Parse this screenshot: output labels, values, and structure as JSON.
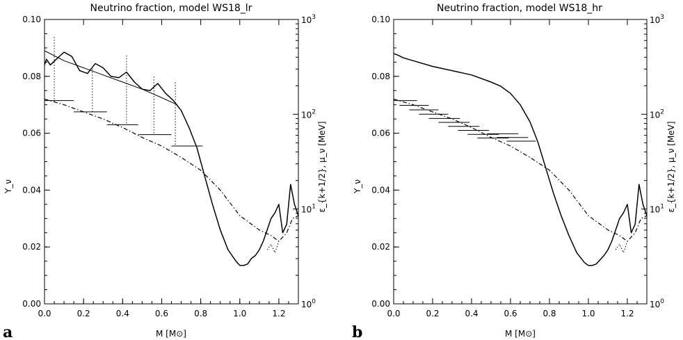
{
  "chart_data": [
    {
      "panel_label": "a",
      "type": "line",
      "title": "Neutrino fraction, model WS18_lr",
      "xlabel": "M [M⊙]",
      "ylabel": "Y_ν",
      "ylabel_right": "ε_{k+1/2}, μ_ν [MeV]",
      "xlim": [
        0.0,
        1.3
      ],
      "ylim": [
        0.0,
        0.1
      ],
      "ylim_right": [
        1,
        1000
      ],
      "right_scale": "log",
      "xticks": [
        "0.0",
        "0.2",
        "0.4",
        "0.6",
        "0.8",
        "1.0",
        "1.2"
      ],
      "yticks": [
        "0.00",
        "0.02",
        "0.04",
        "0.06",
        "0.08",
        "0.10"
      ],
      "right_ticks": [
        {
          "base": "10",
          "exp": "0",
          "value": 1
        },
        {
          "base": "10",
          "exp": "1",
          "value": 10
        },
        {
          "base": "10",
          "exp": "2",
          "value": 100
        },
        {
          "base": "10",
          "exp": "3",
          "value": 1000
        }
      ],
      "series": [
        {
          "style": "solid",
          "axis": "left",
          "x": [
            0.0,
            0.01,
            0.03,
            0.06,
            0.1,
            0.14,
            0.18,
            0.22,
            0.26,
            0.3,
            0.34,
            0.38,
            0.42,
            0.46,
            0.5,
            0.54,
            0.58,
            0.62,
            0.66,
            0.7,
            0.74,
            0.78,
            0.82,
            0.86,
            0.9,
            0.94,
            0.98,
            1.0,
            1.02,
            1.04,
            1.06,
            1.08,
            1.1,
            1.12,
            1.14,
            1.16,
            1.18,
            1.2,
            1.22,
            1.24,
            1.26,
            1.28,
            1.3
          ],
          "y": [
            0.084,
            0.086,
            0.084,
            0.086,
            0.0885,
            0.087,
            0.082,
            0.081,
            0.0845,
            0.083,
            0.08,
            0.0795,
            0.0815,
            0.078,
            0.0755,
            0.075,
            0.0775,
            0.074,
            0.0715,
            0.068,
            0.062,
            0.055,
            0.045,
            0.035,
            0.026,
            0.019,
            0.015,
            0.0135,
            0.0135,
            0.014,
            0.016,
            0.017,
            0.019,
            0.022,
            0.026,
            0.03,
            0.032,
            0.035,
            0.025,
            0.028,
            0.042,
            0.035,
            0.031
          ]
        },
        {
          "style": "solid-thin",
          "axis": "left",
          "x": [
            0.0,
            0.1,
            0.2,
            0.3,
            0.4,
            0.5,
            0.6,
            0.68
          ],
          "y": [
            0.089,
            0.0855,
            0.083,
            0.0805,
            0.078,
            0.0755,
            0.0725,
            0.07
          ]
        },
        {
          "style": "dash-dot",
          "axis": "left",
          "x": [
            0.0,
            0.1,
            0.2,
            0.3,
            0.4,
            0.5,
            0.6,
            0.7,
            0.8,
            0.9,
            1.0,
            1.1,
            1.16,
            1.2,
            1.24,
            1.27,
            1.3
          ],
          "y": [
            0.072,
            0.07,
            0.0675,
            0.065,
            0.062,
            0.0585,
            0.0555,
            0.0515,
            0.047,
            0.04,
            0.031,
            0.026,
            0.024,
            0.022,
            0.025,
            0.03,
            0.031
          ]
        },
        {
          "style": "dotted",
          "axis": "left",
          "x": [
            1.14,
            1.16,
            1.18,
            1.2
          ],
          "y": [
            0.019,
            0.021,
            0.018,
            0.022
          ]
        }
      ],
      "horizontal_bars": [
        {
          "x0": 0.0,
          "x1": 0.15,
          "y": 0.0715
        },
        {
          "x0": 0.15,
          "x1": 0.32,
          "y": 0.0675
        },
        {
          "x0": 0.32,
          "x1": 0.48,
          "y": 0.063
        },
        {
          "x0": 0.48,
          "x1": 0.65,
          "y": 0.0595
        },
        {
          "x0": 0.65,
          "x1": 0.81,
          "y": 0.0555
        }
      ],
      "vertical_dotted": [
        {
          "x": 0.05,
          "y0": 0.071,
          "y1": 0.0945
        },
        {
          "x": 0.245,
          "y0": 0.0675,
          "y1": 0.083
        },
        {
          "x": 0.42,
          "y0": 0.0635,
          "y1": 0.0875
        },
        {
          "x": 0.56,
          "y0": 0.06,
          "y1": 0.08
        },
        {
          "x": 0.67,
          "y0": 0.056,
          "y1": 0.0785
        }
      ]
    },
    {
      "panel_label": "b",
      "type": "line",
      "title": "Neutrino fraction, model WS18_hr",
      "xlabel": "M [M⊙]",
      "ylabel": "Y_ν",
      "ylabel_right": "ε_{k+1/2}, μ_ν [MeV]",
      "xlim": [
        0.0,
        1.3
      ],
      "ylim": [
        0.0,
        0.1
      ],
      "ylim_right": [
        1,
        1000
      ],
      "right_scale": "log",
      "xticks": [
        "0.0",
        "0.2",
        "0.4",
        "0.6",
        "0.8",
        "1.0",
        "1.2"
      ],
      "yticks": [
        "0.00",
        "0.02",
        "0.04",
        "0.06",
        "0.08",
        "0.10"
      ],
      "right_ticks": [
        {
          "base": "10",
          "exp": "0",
          "value": 1
        },
        {
          "base": "10",
          "exp": "1",
          "value": 10
        },
        {
          "base": "10",
          "exp": "2",
          "value": 100
        },
        {
          "base": "10",
          "exp": "3",
          "value": 1000
        }
      ],
      "series": [
        {
          "style": "solid",
          "axis": "left",
          "x": [
            0.0,
            0.02,
            0.05,
            0.1,
            0.2,
            0.3,
            0.4,
            0.5,
            0.55,
            0.6,
            0.65,
            0.7,
            0.74,
            0.78,
            0.82,
            0.86,
            0.9,
            0.94,
            0.98,
            1.0,
            1.02,
            1.04,
            1.06,
            1.08,
            1.1,
            1.12,
            1.14,
            1.16,
            1.18,
            1.2,
            1.22,
            1.24,
            1.26,
            1.28,
            1.3
          ],
          "y": [
            0.088,
            0.0875,
            0.0865,
            0.0855,
            0.0835,
            0.082,
            0.0805,
            0.078,
            0.0765,
            0.074,
            0.07,
            0.064,
            0.057,
            0.048,
            0.039,
            0.031,
            0.024,
            0.018,
            0.0145,
            0.0135,
            0.0135,
            0.014,
            0.0155,
            0.017,
            0.019,
            0.022,
            0.026,
            0.03,
            0.032,
            0.035,
            0.025,
            0.028,
            0.042,
            0.035,
            0.031
          ]
        },
        {
          "style": "dash-dot",
          "axis": "left",
          "x": [
            0.0,
            0.1,
            0.2,
            0.3,
            0.4,
            0.5,
            0.6,
            0.7,
            0.8,
            0.9,
            1.0,
            1.1,
            1.16,
            1.2,
            1.24,
            1.27,
            1.3
          ],
          "y": [
            0.072,
            0.07,
            0.0675,
            0.065,
            0.062,
            0.0585,
            0.0555,
            0.0515,
            0.047,
            0.04,
            0.031,
            0.026,
            0.024,
            0.022,
            0.025,
            0.03,
            0.031
          ]
        },
        {
          "style": "dotted",
          "axis": "left",
          "x": [
            1.14,
            1.16,
            1.18,
            1.2
          ],
          "y": [
            0.019,
            0.021,
            0.018,
            0.022
          ]
        }
      ],
      "horizontal_bars": [
        {
          "x0": 0.0,
          "x1": 0.12,
          "y": 0.0715
        },
        {
          "x0": 0.03,
          "x1": 0.18,
          "y": 0.0698
        },
        {
          "x0": 0.08,
          "x1": 0.23,
          "y": 0.0682
        },
        {
          "x0": 0.13,
          "x1": 0.28,
          "y": 0.0667
        },
        {
          "x0": 0.18,
          "x1": 0.34,
          "y": 0.0652
        },
        {
          "x0": 0.23,
          "x1": 0.39,
          "y": 0.0638
        },
        {
          "x0": 0.28,
          "x1": 0.44,
          "y": 0.0624
        },
        {
          "x0": 0.33,
          "x1": 0.49,
          "y": 0.061
        },
        {
          "x0": 0.38,
          "x1": 0.54,
          "y": 0.0596
        },
        {
          "x0": 0.43,
          "x1": 0.59,
          "y": 0.0583
        },
        {
          "x0": 0.48,
          "x1": 0.64,
          "y": 0.0598
        },
        {
          "x0": 0.53,
          "x1": 0.69,
          "y": 0.0585
        },
        {
          "x0": 0.58,
          "x1": 0.73,
          "y": 0.0572
        }
      ],
      "vertical_dotted": []
    }
  ]
}
